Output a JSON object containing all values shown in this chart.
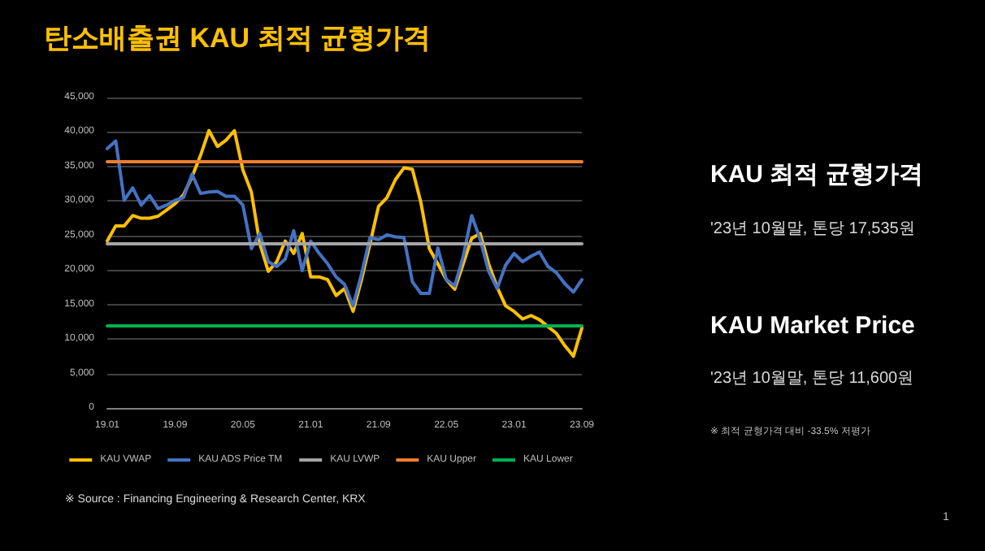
{
  "chart_data": [
    {
      "type": "line",
      "title": "탄소배출권 KAU 최적 균형가격",
      "categories": [
        "19.01",
        null,
        null,
        null,
        null,
        null,
        null,
        null,
        "19.09",
        null,
        null,
        null,
        null,
        null,
        null,
        null,
        "20.05",
        null,
        null,
        null,
        null,
        null,
        null,
        null,
        "21.01",
        null,
        null,
        null,
        null,
        null,
        null,
        null,
        "21.09",
        null,
        null,
        null,
        null,
        null,
        null,
        null,
        "22.05",
        null,
        null,
        null,
        null,
        null,
        null,
        null,
        "23.01",
        null,
        null,
        null,
        null,
        null,
        null,
        null,
        "23.09"
      ],
      "series": [
        {
          "name": "KAU VWAP",
          "color": "#ffc000",
          "values": [
            24200,
            26400,
            26400,
            27900,
            27500,
            27500,
            27800,
            28700,
            29600,
            30900,
            33500,
            36600,
            40200,
            37900,
            38800,
            40200,
            34500,
            31300,
            23800,
            19800,
            21200,
            24200,
            22400,
            25300,
            19000,
            19000,
            18600,
            16300,
            17300,
            14000,
            18600,
            23800,
            29200,
            30500,
            33100,
            34800,
            34600,
            29800,
            23100,
            20900,
            18600,
            17200,
            20900,
            24600,
            25300,
            20900,
            17500,
            14800,
            14000,
            12900,
            13400,
            12800,
            11800,
            10800,
            9000,
            7500,
            11600
          ]
        },
        {
          "name": "KAU ADS Price TM",
          "color": "#4472c4",
          "values": [
            37600,
            38700,
            30100,
            31900,
            29400,
            30800,
            28900,
            29400,
            30100,
            30500,
            33900,
            31100,
            31300,
            31400,
            30700,
            30700,
            29400,
            23100,
            25300,
            21200,
            20500,
            21600,
            25700,
            19900,
            24200,
            22400,
            20900,
            19000,
            17900,
            14800,
            19400,
            24700,
            24400,
            25100,
            24800,
            24700,
            18300,
            16600,
            16600,
            23200,
            18600,
            17700,
            22000,
            27900,
            24400,
            19800,
            17300,
            20700,
            22400,
            21200,
            22000,
            22600,
            20500,
            19600,
            18000,
            16800,
            18600
          ]
        },
        {
          "name": "KAU LVWP",
          "color": "#a5a5a5",
          "values": [
            23800,
            23800,
            23800,
            23800,
            23800,
            23800,
            23800,
            23800,
            23800,
            23800,
            23800,
            23800,
            23800,
            23800,
            23800,
            23800,
            23800,
            23800,
            23800,
            23800,
            23800,
            23800,
            23800,
            23800,
            23800,
            23800,
            23800,
            23800,
            23800,
            23800,
            23800,
            23800,
            23800,
            23800,
            23800,
            23800,
            23800,
            23800,
            23800,
            23800,
            23800,
            23800,
            23800,
            23800,
            23800,
            23800,
            23800,
            23800,
            23800,
            23800,
            23800,
            23800,
            23800,
            23800,
            23800,
            23800,
            23800
          ]
        },
        {
          "name": "KAU Upper",
          "color": "#ed7d31",
          "values": [
            35700,
            35700,
            35700,
            35700,
            35700,
            35700,
            35700,
            35700,
            35700,
            35700,
            35700,
            35700,
            35700,
            35700,
            35700,
            35700,
            35700,
            35700,
            35700,
            35700,
            35700,
            35700,
            35700,
            35700,
            35700,
            35700,
            35700,
            35700,
            35700,
            35700,
            35700,
            35700,
            35700,
            35700,
            35700,
            35700,
            35700,
            35700,
            35700,
            35700,
            35700,
            35700,
            35700,
            35700,
            35700,
            35700,
            35700,
            35700,
            35700,
            35700,
            35700,
            35700,
            35700,
            35700,
            35700,
            35700,
            35700
          ]
        },
        {
          "name": "KAU Lower",
          "color": "#00b050",
          "values": [
            11900,
            11900,
            11900,
            11900,
            11900,
            11900,
            11900,
            11900,
            11900,
            11900,
            11900,
            11900,
            11900,
            11900,
            11900,
            11900,
            11900,
            11900,
            11900,
            11900,
            11900,
            11900,
            11900,
            11900,
            11900,
            11900,
            11900,
            11900,
            11900,
            11900,
            11900,
            11900,
            11900,
            11900,
            11900,
            11900,
            11900,
            11900,
            11900,
            11900,
            11900,
            11900,
            11900,
            11900,
            11900,
            11900,
            11900,
            11900,
            11900,
            11900,
            11900,
            11900,
            11900,
            11900,
            11900,
            11900,
            11900
          ]
        }
      ],
      "ylim": [
        0,
        45000
      ],
      "yticks": [
        {
          "value": 0,
          "label": "0"
        },
        {
          "value": 5000,
          "label": "5,000"
        },
        {
          "value": 10000,
          "label": "10,000"
        },
        {
          "value": 15000,
          "label": "15,000"
        },
        {
          "value": 20000,
          "label": "20,000"
        },
        {
          "value": 25000,
          "label": "25,000"
        },
        {
          "value": 30000,
          "label": "30,000"
        },
        {
          "value": 35000,
          "label": "35,000"
        },
        {
          "value": 40000,
          "label": "40,000"
        },
        {
          "value": 45000,
          "label": "45,000"
        }
      ],
      "grid": "y",
      "legend": "bottom",
      "marker": "none",
      "line_style": "solid",
      "annotations": [
        "※ Source : Financing Engineering & Research Center, KRX"
      ]
    },
    {
      "type": "other",
      "annotations": [
        "KAU 최적 균형가격",
        "'23년 10월말, 톤당 17,535원",
        "KAU Market Price",
        "'23년 10월말, 톤당 11,600원",
        "※ 최적 균형가격 대비 -33.5% 저평가",
        "1"
      ]
    }
  ]
}
